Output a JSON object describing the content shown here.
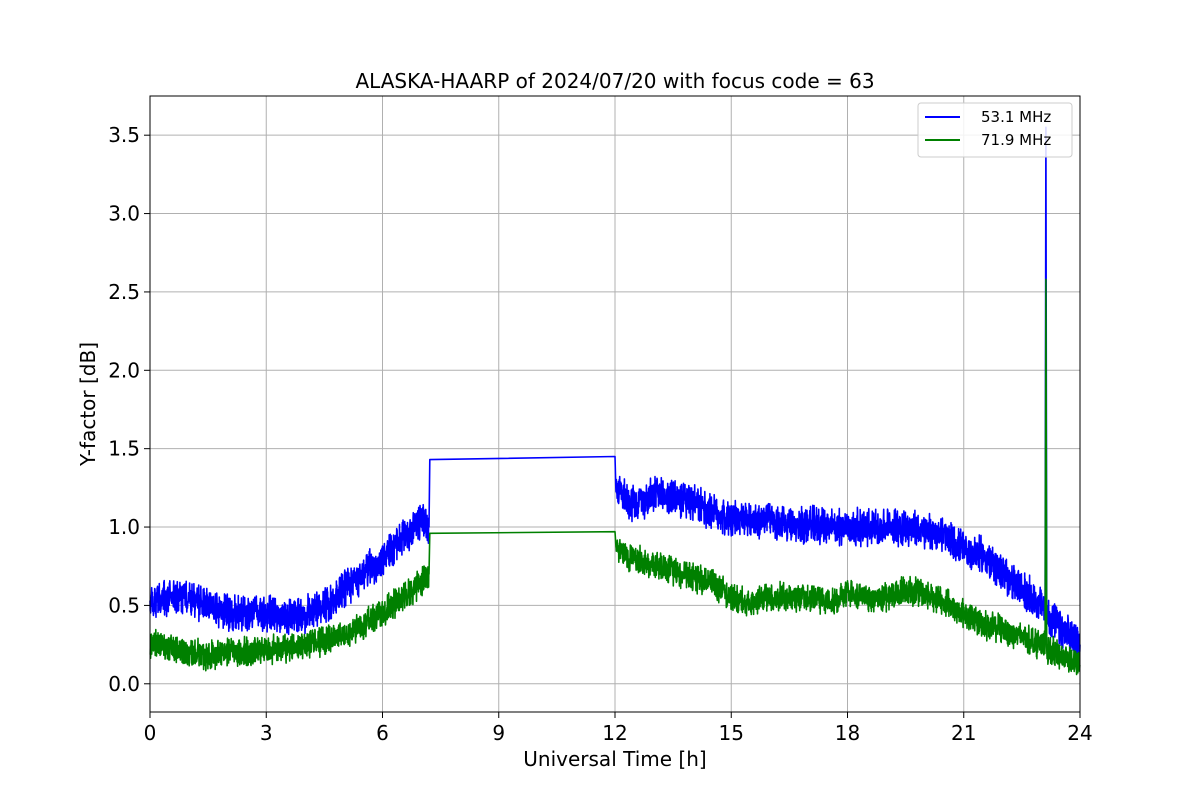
{
  "chart_data": {
    "type": "line",
    "title": "ALASKA-HAARP of 2024/07/20 with focus code = 63",
    "xlabel": "Universal Time [h]",
    "ylabel": "Y-factor [dB]",
    "xlim": [
      0,
      24
    ],
    "ylim": [
      -0.18,
      3.75
    ],
    "xticks": [
      0,
      3,
      6,
      9,
      12,
      15,
      18,
      21,
      24
    ],
    "yticks": [
      0.0,
      0.5,
      1.0,
      1.5,
      2.0,
      2.5,
      3.0,
      3.5
    ],
    "xtick_labels": [
      "0",
      "3",
      "6",
      "9",
      "12",
      "15",
      "18",
      "21",
      "24"
    ],
    "ytick_labels": [
      "0.0",
      "0.5",
      "1.0",
      "1.5",
      "2.0",
      "2.5",
      "3.0",
      "3.5"
    ],
    "grid": true,
    "legend_position": "top-right",
    "series": [
      {
        "name": "53.1 MHz",
        "color": "#0000ff",
        "x": [
          0,
          0.5,
          1,
          1.5,
          2,
          2.5,
          3,
          3.5,
          4,
          4.5,
          5,
          5.5,
          6,
          6.5,
          7,
          7.2,
          7.22,
          12,
          12.02,
          12.5,
          13,
          13.5,
          14,
          14.5,
          15,
          15.5,
          16,
          16.5,
          17,
          17.5,
          18,
          18.5,
          19,
          19.5,
          20,
          20.5,
          21,
          21.5,
          22,
          22.5,
          23,
          23.1,
          23.12,
          23.14,
          23.2,
          23.5,
          24
        ],
        "y": [
          0.5,
          0.55,
          0.55,
          0.5,
          0.45,
          0.45,
          0.45,
          0.42,
          0.45,
          0.5,
          0.6,
          0.7,
          0.8,
          0.92,
          1.05,
          1.0,
          1.43,
          1.45,
          1.25,
          1.15,
          1.2,
          1.2,
          1.15,
          1.1,
          1.05,
          1.05,
          1.05,
          1.0,
          1.02,
          1.0,
          1.0,
          1.0,
          1.0,
          1.0,
          0.97,
          0.95,
          0.85,
          0.82,
          0.7,
          0.6,
          0.5,
          0.5,
          3.55,
          0.45,
          0.42,
          0.35,
          0.25
        ],
        "noise": 0.09
      },
      {
        "name": "71.9 MHz",
        "color": "#008000",
        "x": [
          0,
          0.5,
          1,
          1.5,
          2,
          2.5,
          3,
          3.5,
          4,
          4.5,
          5,
          5.5,
          6,
          6.5,
          7,
          7.2,
          7.22,
          12,
          12.02,
          12.5,
          13,
          13.5,
          14,
          14.5,
          15,
          15.5,
          16,
          16.5,
          17,
          17.5,
          18,
          18.5,
          19,
          19.5,
          20,
          20.5,
          21,
          21.5,
          22,
          22.5,
          23,
          23.1,
          23.12,
          23.14,
          23.2,
          23.5,
          24
        ],
        "y": [
          0.25,
          0.25,
          0.2,
          0.18,
          0.2,
          0.2,
          0.22,
          0.22,
          0.25,
          0.28,
          0.3,
          0.38,
          0.45,
          0.55,
          0.65,
          0.7,
          0.96,
          0.97,
          0.85,
          0.8,
          0.75,
          0.72,
          0.68,
          0.65,
          0.55,
          0.52,
          0.55,
          0.55,
          0.55,
          0.52,
          0.58,
          0.55,
          0.55,
          0.6,
          0.58,
          0.52,
          0.45,
          0.38,
          0.35,
          0.3,
          0.25,
          0.25,
          2.58,
          0.2,
          0.22,
          0.18,
          0.12
        ],
        "noise": 0.07
      }
    ]
  }
}
